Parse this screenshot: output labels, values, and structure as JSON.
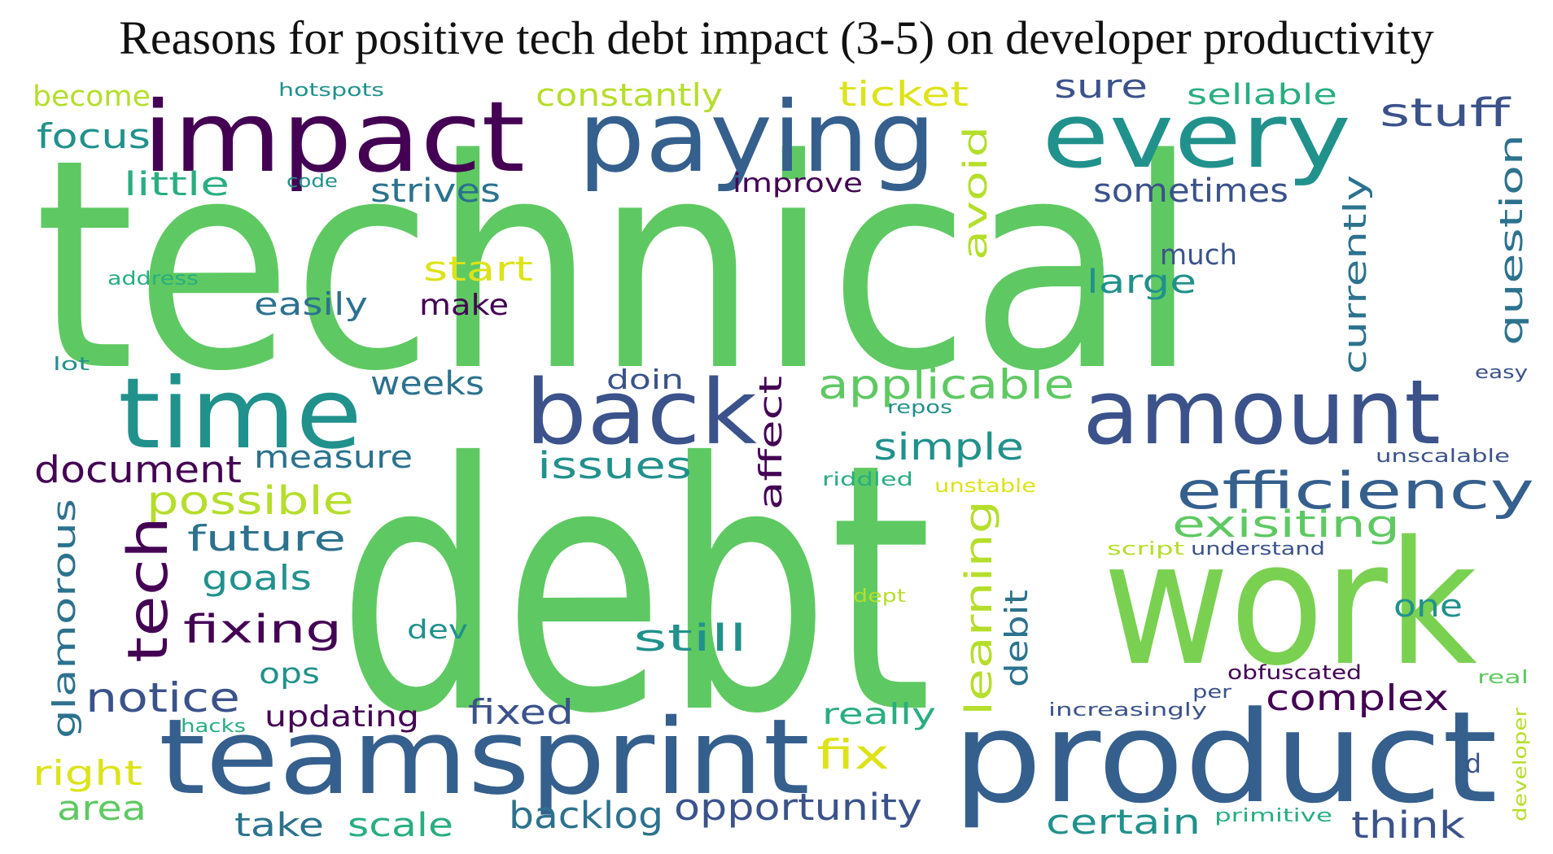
{
  "title": "Reasons for positive tech debt impact (3-5) on developer productivity",
  "colors": {
    "purple": "#440154",
    "indigo": "#3b528b",
    "blue": "#355f8d",
    "teal_blue": "#2c728e",
    "teal": "#21918c",
    "green_teal": "#28ae80",
    "green": "#5ec962",
    "light_green": "#7ad151",
    "yellow_green": "#b5de2b",
    "yellow": "#dde318"
  },
  "words": [
    {
      "text": "technical",
      "color": "green"
    },
    {
      "text": "debt",
      "color": "green"
    },
    {
      "text": "impact",
      "color": "purple"
    },
    {
      "text": "paying",
      "color": "blue"
    },
    {
      "text": "every",
      "color": "teal"
    },
    {
      "text": "work",
      "color": "light_green"
    },
    {
      "text": "product",
      "color": "blue"
    },
    {
      "text": "teamsprint",
      "color": "blue"
    },
    {
      "text": "amount",
      "color": "indigo"
    },
    {
      "text": "time",
      "color": "teal"
    },
    {
      "text": "back",
      "color": "indigo"
    },
    {
      "text": "efficiency",
      "color": "blue"
    },
    {
      "text": "tech",
      "color": "purple"
    },
    {
      "text": "applicable",
      "color": "green"
    },
    {
      "text": "exisiting",
      "color": "green"
    },
    {
      "text": "document",
      "color": "purple"
    },
    {
      "text": "possible",
      "color": "yellow_green"
    },
    {
      "text": "future",
      "color": "teal_blue"
    },
    {
      "text": "notice",
      "color": "indigo"
    },
    {
      "text": "fixing",
      "color": "purple"
    },
    {
      "text": "glamorous",
      "color": "teal_blue"
    },
    {
      "text": "complex",
      "color": "purple"
    },
    {
      "text": "issues",
      "color": "teal"
    },
    {
      "text": "simple",
      "color": "teal"
    },
    {
      "text": "learning",
      "color": "yellow_green"
    },
    {
      "text": "avoid",
      "color": "yellow_green"
    },
    {
      "text": "affect",
      "color": "purple"
    },
    {
      "text": "stuff",
      "color": "indigo"
    },
    {
      "text": "question",
      "color": "teal_blue"
    },
    {
      "text": "currently",
      "color": "teal_blue"
    },
    {
      "text": "sometimes",
      "color": "indigo"
    },
    {
      "text": "ticket",
      "color": "yellow"
    },
    {
      "text": "constantly",
      "color": "yellow_green"
    },
    {
      "text": "sellable",
      "color": "green_teal"
    },
    {
      "text": "sure",
      "color": "indigo"
    },
    {
      "text": "focus",
      "color": "teal"
    },
    {
      "text": "become",
      "color": "yellow_green"
    },
    {
      "text": "little",
      "color": "green_teal"
    },
    {
      "text": "strives",
      "color": "teal_blue"
    },
    {
      "text": "improve",
      "color": "purple"
    },
    {
      "text": "start",
      "color": "yellow"
    },
    {
      "text": "large",
      "color": "teal"
    },
    {
      "text": "much",
      "color": "indigo"
    },
    {
      "text": "easily",
      "color": "teal_blue"
    },
    {
      "text": "make",
      "color": "purple"
    },
    {
      "text": "weeks",
      "color": "teal_blue"
    },
    {
      "text": "doin",
      "color": "indigo"
    },
    {
      "text": "measure",
      "color": "teal_blue"
    },
    {
      "text": "goals",
      "color": "teal"
    },
    {
      "text": "still",
      "color": "teal"
    },
    {
      "text": "one",
      "color": "teal"
    },
    {
      "text": "debit",
      "color": "teal_blue"
    },
    {
      "text": "dev",
      "color": "teal"
    },
    {
      "text": "ops",
      "color": "teal"
    },
    {
      "text": "updating",
      "color": "purple"
    },
    {
      "text": "fixed",
      "color": "indigo"
    },
    {
      "text": "really",
      "color": "green_teal"
    },
    {
      "text": "fix",
      "color": "yellow"
    },
    {
      "text": "right",
      "color": "yellow"
    },
    {
      "text": "area",
      "color": "green"
    },
    {
      "text": "take",
      "color": "teal_blue"
    },
    {
      "text": "scale",
      "color": "green_teal"
    },
    {
      "text": "backlog",
      "color": "teal_blue"
    },
    {
      "text": "opportunity",
      "color": "indigo"
    },
    {
      "text": "certain",
      "color": "teal"
    },
    {
      "text": "think",
      "color": "indigo"
    },
    {
      "text": "d",
      "color": "indigo"
    },
    {
      "text": "hotspots",
      "color": "teal"
    },
    {
      "text": "code",
      "color": "teal"
    },
    {
      "text": "address",
      "color": "green_teal"
    },
    {
      "text": "lot",
      "color": "teal"
    },
    {
      "text": "repos",
      "color": "teal"
    },
    {
      "text": "easy",
      "color": "indigo"
    },
    {
      "text": "unscalable",
      "color": "indigo"
    },
    {
      "text": "riddled",
      "color": "green_teal"
    },
    {
      "text": "unstable",
      "color": "yellow"
    },
    {
      "text": "script",
      "color": "yellow_green"
    },
    {
      "text": "understand",
      "color": "indigo"
    },
    {
      "text": "dept",
      "color": "yellow_green"
    },
    {
      "text": "obfuscated",
      "color": "purple"
    },
    {
      "text": "per",
      "color": "indigo"
    },
    {
      "text": "real",
      "color": "green"
    },
    {
      "text": "increasingly",
      "color": "indigo"
    },
    {
      "text": "hacks",
      "color": "green_teal"
    },
    {
      "text": "developer",
      "color": "yellow_green"
    },
    {
      "text": "primitive",
      "color": "green_teal"
    }
  ]
}
